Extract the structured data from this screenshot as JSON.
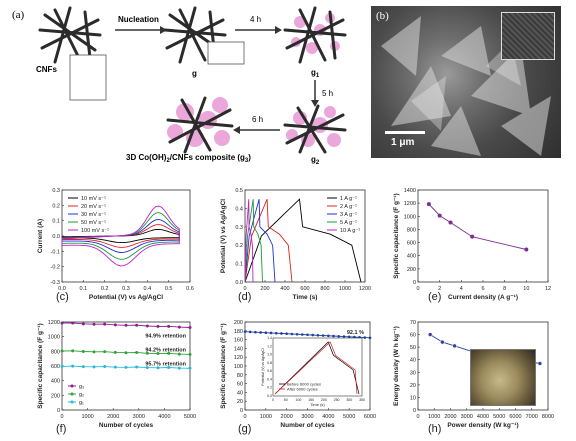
{
  "schematic": {
    "panel_letter": "(a)",
    "nucleation_label": "Nucleation",
    "cnfs_label": "CNFs",
    "g_label": "g",
    "g1_label": "g",
    "g1_sub": "1",
    "g2_label": "g",
    "g2_sub": "2",
    "g3_label": "g",
    "g3_sub": "3",
    "time_4h": "4 h",
    "time_5h": "5 h",
    "time_6h": "6 h",
    "composite_caption": "3D Co(OH)",
    "composite_sub": "2",
    "composite_rest": "/CNFs composite (g",
    "composite_sub2": "3",
    "composite_end": ")"
  },
  "sem": {
    "panel_letter": "(b)",
    "scale_label": "1 μm"
  },
  "panel_letters": {
    "c": "(c)",
    "d": "(d)",
    "e": "(e)",
    "f": "(f)",
    "g": "(g)",
    "h": "(h)"
  },
  "chart_data": [
    {
      "id": "c",
      "type": "line",
      "xlabel": "Potential (V) vs Ag/AgCl",
      "ylabel": "Current (A)",
      "xlim": [
        0.0,
        0.6
      ],
      "ylim": [
        -0.3,
        0.3
      ],
      "xticks": [
        "0.0",
        "0.1",
        "0.2",
        "0.3",
        "0.4",
        "0.5",
        "0.6"
      ],
      "yticks": [
        "-0.3",
        "-0.2",
        "-0.1",
        "0.0",
        "0.1",
        "0.2",
        "0.3"
      ],
      "legend": "top-left",
      "series": [
        {
          "name": "10 mV s⁻¹",
          "color": "#000000",
          "scale": 0.22
        },
        {
          "name": "20 mV s⁻¹",
          "color": "#e0201f",
          "scale": 0.38
        },
        {
          "name": "30 mV s⁻¹",
          "color": "#1f2fd9",
          "scale": 0.55
        },
        {
          "name": "50 mV s⁻¹",
          "color": "#1a9b3a",
          "scale": 0.78
        },
        {
          "name": "100 mV s⁻¹",
          "color": "#c21fc9",
          "scale": 1.0
        }
      ]
    },
    {
      "id": "d",
      "type": "line",
      "xlabel": "Time (s)",
      "ylabel": "Potential (V) vs Ag/AgCl",
      "xlim": [
        0,
        1200
      ],
      "ylim": [
        0.0,
        0.5
      ],
      "xticks": [
        "0",
        "200",
        "400",
        "600",
        "800",
        "1000",
        "1200"
      ],
      "yticks": [
        "0.0",
        "0.1",
        "0.2",
        "0.3",
        "0.4",
        "0.5"
      ],
      "legend": "top-right",
      "series": [
        {
          "name": "1 A g⁻¹",
          "color": "#000000",
          "tmax": 1160
        },
        {
          "name": "2 A g⁻¹",
          "color": "#e0201f",
          "tmax": 470
        },
        {
          "name": "3 A g⁻¹",
          "color": "#1f2fd9",
          "tmax": 300
        },
        {
          "name": "5 A g⁻¹",
          "color": "#1a9b3a",
          "tmax": 175
        },
        {
          "name": "10 A g⁻¹",
          "color": "#c21fc9",
          "tmax": 80
        }
      ]
    },
    {
      "id": "e",
      "type": "line",
      "xlabel": "Current density (A g⁻¹)",
      "ylabel": "Specific capacitance (F g⁻¹)",
      "xlim": [
        0,
        12
      ],
      "ylim": [
        0,
        1400
      ],
      "xticks": [
        "0",
        "2",
        "4",
        "6",
        "8",
        "10",
        "12"
      ],
      "yticks": [
        "0",
        "200",
        "400",
        "600",
        "800",
        "1000",
        "1200",
        "1400"
      ],
      "x": [
        1,
        2,
        3,
        5,
        10
      ],
      "values": [
        1185,
        1010,
        905,
        690,
        495
      ],
      "color": "#7b2f8f"
    },
    {
      "id": "f",
      "type": "line",
      "xlabel": "Number of cycles",
      "ylabel": "Specific capacitance (F g⁻¹)",
      "xlim": [
        0,
        5000
      ],
      "ylim": [
        0,
        1200
      ],
      "xticks": [
        "0",
        "1000",
        "2000",
        "3000",
        "4000",
        "5000"
      ],
      "yticks": [
        "0",
        "200",
        "400",
        "600",
        "800",
        "1000",
        "1200"
      ],
      "legend": "bottom-left",
      "annotations": [
        "94.9% retention",
        "94.2% retention",
        "95.7% retention"
      ],
      "series": [
        {
          "name": "g₃",
          "color": "#8a1f8f",
          "start": 1185,
          "end": 1125
        },
        {
          "name": "g₂",
          "color": "#2ea33a",
          "start": 805,
          "end": 758
        },
        {
          "name": "g₁",
          "color": "#29b9d8",
          "start": 595,
          "end": 569
        }
      ]
    },
    {
      "id": "g",
      "type": "line",
      "xlabel": "Number of cycles",
      "ylabel": "Specific capacitance (F g⁻¹)",
      "xlim": [
        0,
        6000
      ],
      "ylim": [
        0,
        200
      ],
      "xticks": [
        "0",
        "1000",
        "2000",
        "3000",
        "4000",
        "5000",
        "6000"
      ],
      "yticks": [
        "0",
        "20",
        "40",
        "60",
        "80",
        "100",
        "120",
        "140",
        "160",
        "180",
        "200"
      ],
      "annotation": "92.1 %",
      "start": 178,
      "end": 164,
      "color": "#1f3fa0",
      "inset": {
        "xlabel": "Time (s)",
        "ylabel": "Potential (V) vs Ag/AgCl",
        "xticks": [
          "0",
          "50",
          "100",
          "150",
          "200",
          "250",
          "300",
          "350"
        ],
        "yticks": [
          "0.0",
          "0.2",
          "0.4",
          "0.6",
          "0.8",
          "1.0",
          "1.2",
          "1.4"
        ],
        "series": [
          {
            "name": "Before 6000 cycles",
            "color": "#000000"
          },
          {
            "name": "After 6000 cycles",
            "color": "#d0201f"
          }
        ]
      }
    },
    {
      "id": "h",
      "type": "line",
      "xlabel": "Power density (W kg⁻¹)",
      "ylabel": "Energy density (W h kg⁻¹)",
      "xlim": [
        0,
        8000
      ],
      "ylim": [
        0,
        70
      ],
      "xticks": [
        "0",
        "1000",
        "2000",
        "3000",
        "4000",
        "5000",
        "6000",
        "7000",
        "8000"
      ],
      "yticks": [
        "0",
        "10",
        "20",
        "30",
        "40",
        "50",
        "60",
        "70"
      ],
      "x": [
        750,
        1500,
        2250,
        3700,
        6000,
        7500
      ],
      "values": [
        60,
        54,
        51,
        45,
        40,
        37
      ],
      "color": "#2f3f9f"
    }
  ]
}
